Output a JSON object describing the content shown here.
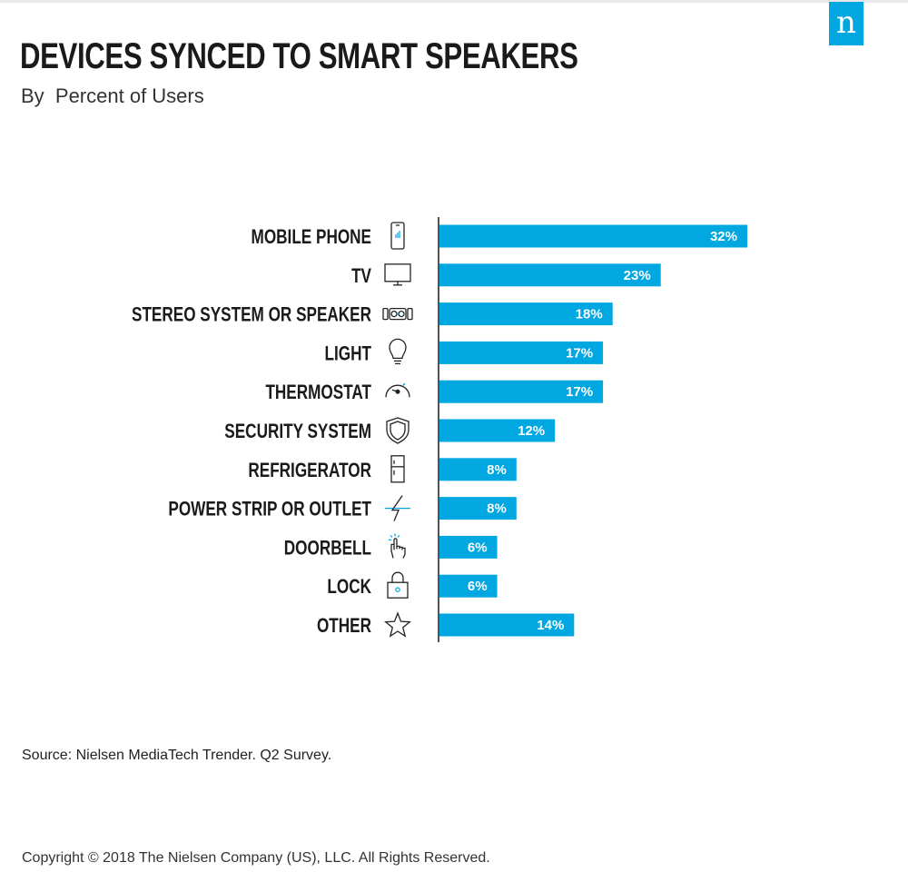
{
  "header": {
    "title": "DEVICES SYNCED TO SMART SPEAKERS",
    "subtitle": "By  Percent of Users",
    "logo_letter": "n"
  },
  "chart_data": {
    "type": "bar",
    "orientation": "horizontal",
    "categories": [
      "MOBILE PHONE",
      "TV",
      "STEREO SYSTEM OR SPEAKER",
      "LIGHT",
      "THERMOSTAT",
      "SECURITY SYSTEM",
      "REFRIGERATOR",
      "POWER STRIP OR OUTLET",
      "DOORBELL",
      "LOCK",
      "OTHER"
    ],
    "values": [
      32,
      23,
      18,
      17,
      17,
      12,
      8,
      8,
      6,
      6,
      14
    ],
    "value_labels": [
      "32%",
      "23%",
      "18%",
      "17%",
      "17%",
      "12%",
      "8%",
      "8%",
      "6%",
      "6%",
      "14%"
    ],
    "icons": [
      "mobile-phone-icon",
      "tv-icon",
      "stereo-speaker-icon",
      "light-bulb-icon",
      "thermostat-icon",
      "security-shield-icon",
      "refrigerator-icon",
      "power-outlet-icon",
      "doorbell-icon",
      "lock-icon",
      "star-icon"
    ],
    "bar_color": "#00a7e1",
    "value_label_position": "inside-end",
    "xlim": [
      0,
      32
    ],
    "grid": false
  },
  "footer": {
    "source": "Source: Nielsen MediaTech Trender. Q2 Survey.",
    "copyright": "Copyright © 2018 The Nielsen Company (US), LLC. All Rights Reserved."
  },
  "colors": {
    "accent": "#00a7e1",
    "logo_bg": "#00a7e1"
  }
}
